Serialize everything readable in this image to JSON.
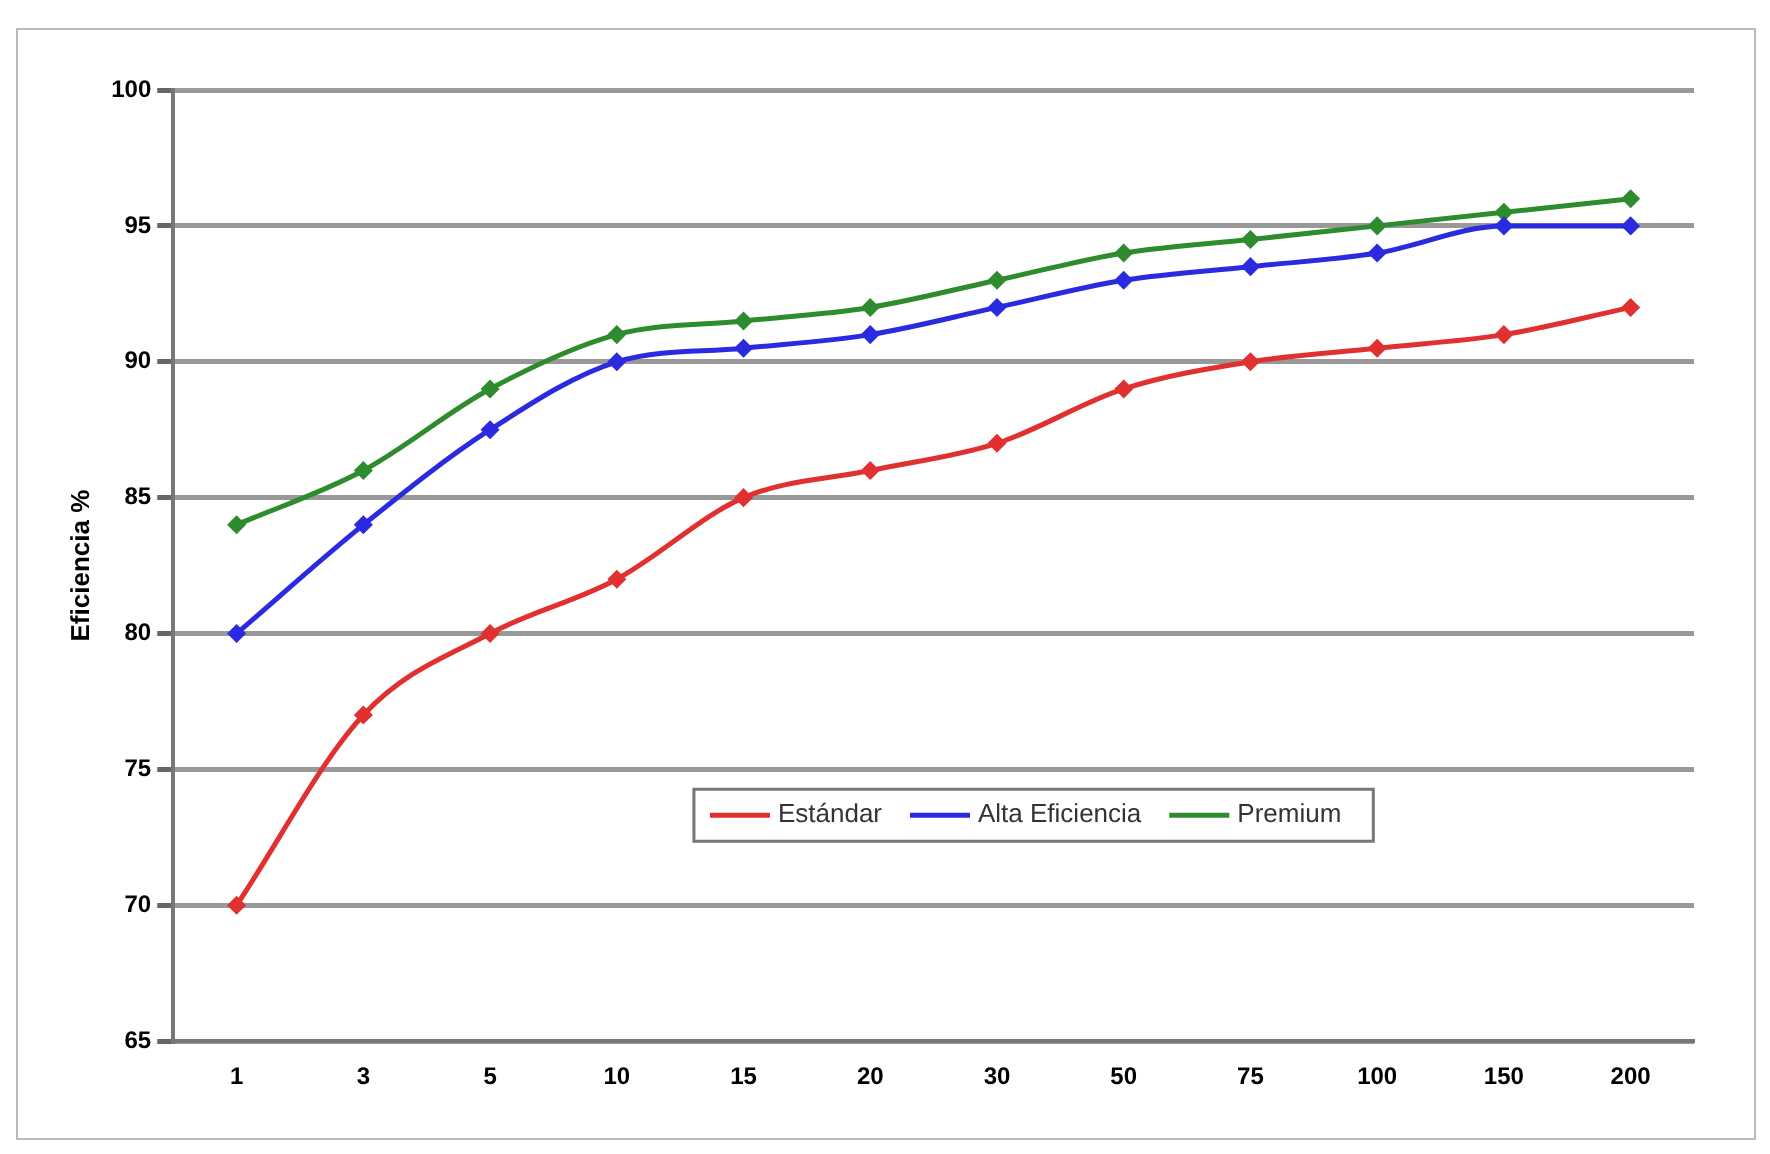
{
  "chart_data": {
    "type": "line",
    "ylabel": "Eficiencia %",
    "categories": [
      "1",
      "3",
      "5",
      "10",
      "15",
      "20",
      "30",
      "50",
      "75",
      "100",
      "150",
      "200"
    ],
    "series": [
      {
        "name": "Estándar",
        "color": "#e03030",
        "values": [
          70,
          77,
          80,
          82,
          85,
          86,
          87,
          89,
          90,
          90.5,
          91,
          92
        ]
      },
      {
        "name": "Alta Eficiencia",
        "color": "#2a2ae0",
        "values": [
          80,
          84,
          87.5,
          90,
          90.5,
          91,
          92,
          93,
          93.5,
          94,
          95,
          95
        ]
      },
      {
        "name": "Premium",
        "color": "#2e8b2e",
        "values": [
          84,
          86,
          89,
          91,
          91.5,
          92,
          93,
          94,
          94.5,
          95,
          95.5,
          96
        ]
      }
    ],
    "ylim": [
      65,
      100
    ],
    "yticks": [
      65,
      70,
      75,
      80,
      85,
      90,
      95,
      100
    ],
    "grid": "y",
    "legend": "bottom",
    "marker": "diamond",
    "line_style": "solid"
  }
}
